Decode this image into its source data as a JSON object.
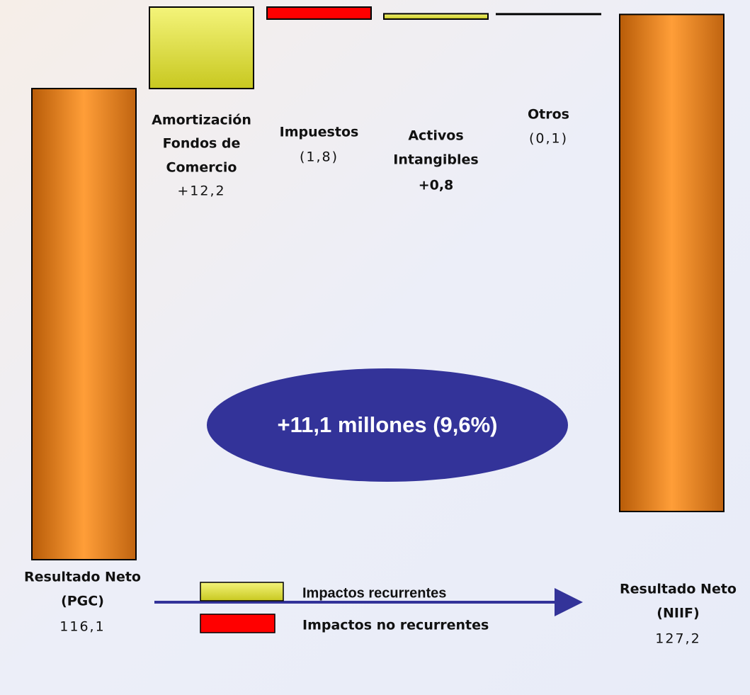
{
  "chart_data": {
    "type": "waterfall",
    "categories": [
      [
        "Resultado Neto",
        "(PGC)"
      ],
      [
        "Amortización",
        "Fondos de",
        "Comercio"
      ],
      [
        "Impuestos"
      ],
      [
        "Activos",
        "Intangibles"
      ],
      [
        "Otros"
      ],
      [
        "Resultado Neto",
        "(NIIF)"
      ]
    ],
    "values": [
      116.1,
      12.2,
      -1.8,
      0.8,
      -0.1,
      127.2
    ],
    "value_labels": [
      "116,1",
      "+12,2",
      "(1,8)",
      "+0,8",
      "(0,1)",
      "127,2"
    ],
    "colors": [
      "#f08a1c",
      "#e6e63a",
      "#ff0000",
      "#e6e63a",
      "#ff0000",
      "#f08a1c"
    ],
    "annotation": "+11,1 millones (9,6%)",
    "legend": [
      {
        "name": "Impactos recurrentes",
        "color": "#e6e63a"
      },
      {
        "name": "Impactos no recurrentes",
        "color": "#ff0000"
      }
    ]
  }
}
